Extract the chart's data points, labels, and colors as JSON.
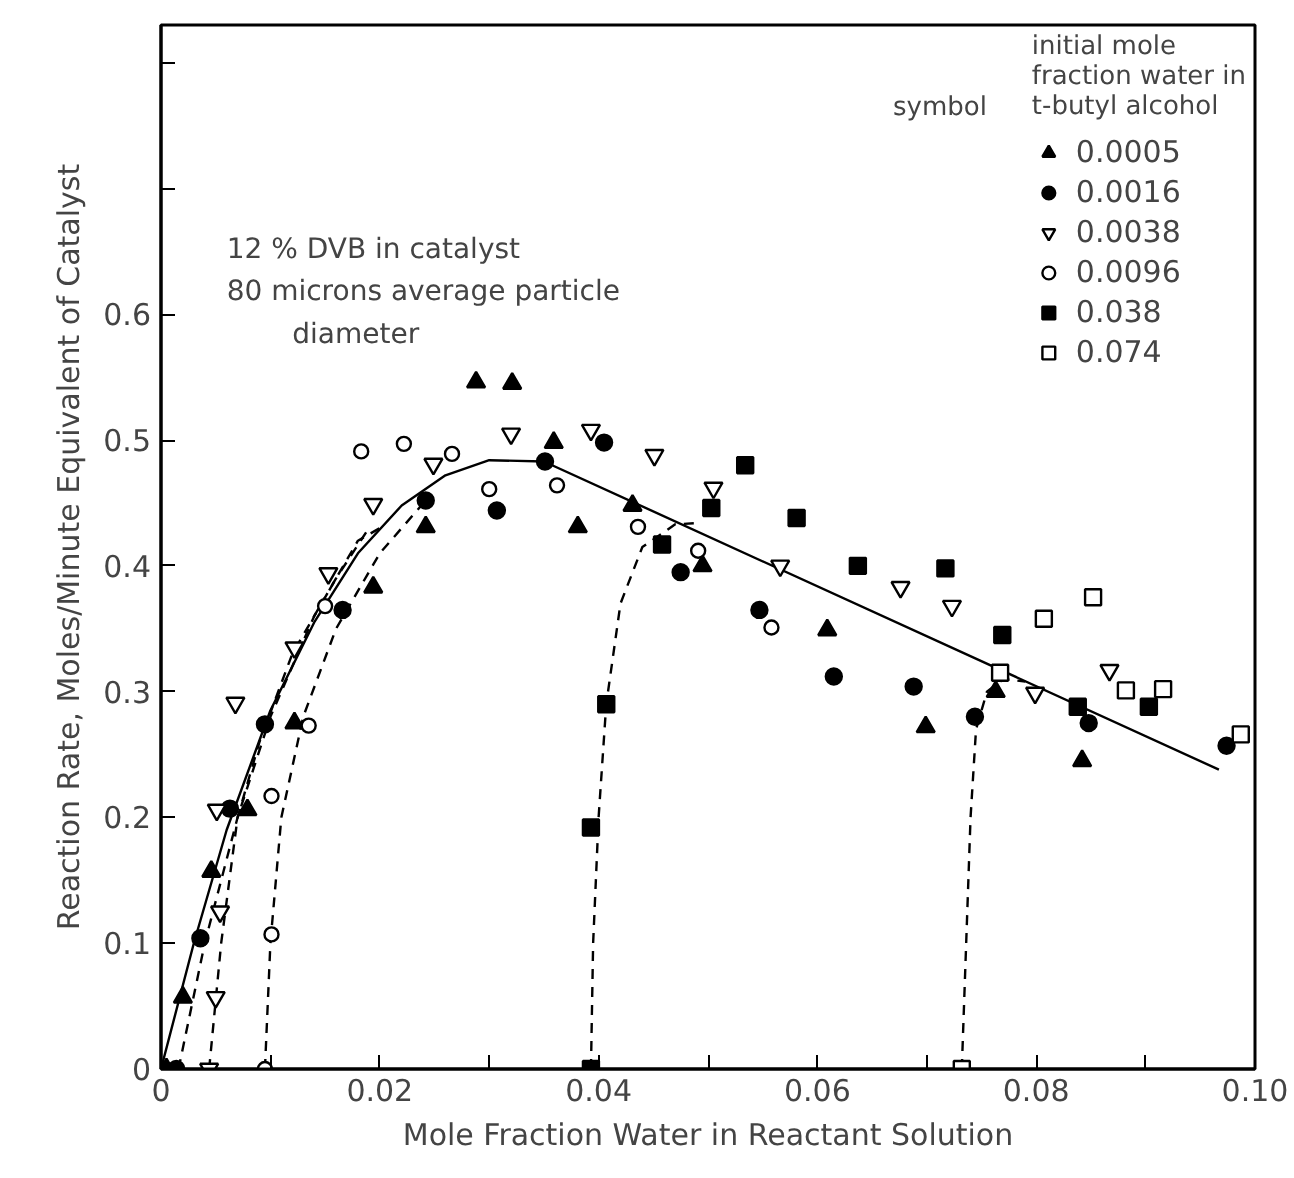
{
  "chart_data": {
    "type": "scatter",
    "xlabel": "Mole Fraction Water in Reactant Solution",
    "ylabel": "Reaction Rate, Moles/Minute Equivalent of Catalyst",
    "legend_title": "initial mole\nfraction water in\nt-butyl alcohol",
    "legend": "top right",
    "grid": false,
    "annotations": [
      "symbol",
      "12 % DVB in catalyst",
      "80 microns average particle",
      "diameter"
    ],
    "xlim": [
      0,
      0.1
    ],
    "ylim": [
      0,
      0.83
    ],
    "xticks": [
      0,
      {
        "value": 0.01,
        "label": null
      },
      "0.02",
      {
        "value": 0.03,
        "label": null
      },
      0.04,
      {
        "value": 0.05,
        "label": null
      },
      0.06,
      {
        "value": 0.07,
        "label": null
      },
      0.08,
      {
        "value": 0.09,
        "label": null
      },
      {
        "value": 0.1,
        "label": "0.10"
      }
    ],
    "yticks": [
      0,
      0.1,
      0.2,
      0.3,
      0.4,
      0.5,
      0.6,
      {
        "value": 0.7,
        "label": null
      },
      {
        "value": 0.8,
        "label": null
      }
    ],
    "series": [
      {
        "type": "line",
        "color": "#000000",
        "line_style": "solid",
        "marker": "none",
        "x": [
          0,
          0.003,
          0.006,
          0.01,
          0.014,
          0.018,
          0.022,
          0.026,
          0.03,
          0.035,
          0.0967
        ],
        "values": [
          0,
          0.1,
          0.19,
          0.285,
          0.355,
          0.41,
          0.448,
          0.472,
          0.484,
          0.483,
          0.238
        ]
      },
      {
        "type": "line",
        "color": "#000000",
        "line_style": "dashed",
        "marker": "none",
        "x": [
          0.0016,
          0.004,
          0.007,
          0.01,
          0.014,
          0.018,
          0.02
        ],
        "values": [
          0,
          0.1,
          0.2,
          0.28,
          0.36,
          0.42,
          0.43
        ]
      },
      {
        "type": "line",
        "color": "#000000",
        "line_style": "dashed",
        "marker": "none",
        "x": [
          0.0044,
          0.0055,
          0.007,
          0.009,
          0.012,
          0.016,
          0.019
        ],
        "values": [
          0,
          0.1,
          0.2,
          0.26,
          0.33,
          0.39,
          0.43
        ]
      },
      {
        "type": "line",
        "color": "#000000",
        "line_style": "dashed",
        "marker": "none",
        "x": [
          0.0095,
          0.01,
          0.011,
          0.013,
          0.016,
          0.02,
          0.024
        ],
        "values": [
          0,
          0.1,
          0.2,
          0.28,
          0.35,
          0.41,
          0.45
        ]
      },
      {
        "type": "line",
        "color": "#000000",
        "line_style": "dashed",
        "marker": "none",
        "x": [
          0.0393,
          0.0395,
          0.04,
          0.0407,
          0.042,
          0.044,
          0.047,
          0.049
        ],
        "values": [
          0,
          0.1,
          0.2,
          0.29,
          0.37,
          0.415,
          0.433,
          0.434
        ]
      },
      {
        "type": "line",
        "color": "#000000",
        "line_style": "dashed",
        "marker": "none",
        "x": [
          0.0732,
          0.0736,
          0.074,
          0.0745,
          0.0755,
          0.077,
          0.079
        ],
        "values": [
          0,
          0.1,
          0.2,
          0.27,
          0.3,
          0.31,
          0.308
        ]
      },
      {
        "name": "0.0005",
        "color": "#000000",
        "marker": "triangle",
        "x": [
          0.0005,
          0.002,
          0.0046,
          0.0079,
          0.0122,
          0.0194,
          0.0242,
          0.0288,
          0.0321,
          0.0359,
          0.0381,
          0.0431,
          0.0495,
          0.0609,
          0.0699,
          0.0763,
          0.0842
        ],
        "values": [
          0,
          0.057,
          0.157,
          0.206,
          0.275,
          0.383,
          0.431,
          0.546,
          0.545,
          0.498,
          0.431,
          0.448,
          0.4,
          0.349,
          0.272,
          0.3,
          0.245
        ]
      },
      {
        "name": "0.0016",
        "color": "#000000",
        "marker": "circle",
        "x": [
          0.0014,
          0.0036,
          0.0063,
          0.0095,
          0.0166,
          0.0242,
          0.0307,
          0.0351,
          0.0405,
          0.0475,
          0.0547,
          0.0615,
          0.0688,
          0.0744,
          0.0848,
          0.0974
        ],
        "values": [
          0,
          0.104,
          0.207,
          0.274,
          0.365,
          0.452,
          0.444,
          0.483,
          0.498,
          0.395,
          0.365,
          0.312,
          0.304,
          0.28,
          0.275,
          0.257
        ]
      },
      {
        "name": "0.0038",
        "color": "#000000",
        "marker": "triangle",
        "x": [
          0.0044,
          0.005,
          0.0054,
          0.0051,
          0.0068,
          0.0122,
          0.0153,
          0.0194,
          0.0249,
          0.032,
          0.0393,
          0.0451,
          0.0505,
          0.0566,
          0.0676,
          0.0723,
          0.0799,
          0.0867
        ],
        "values": [
          0,
          0.057,
          0.125,
          0.206,
          0.291,
          0.335,
          0.394,
          0.449,
          0.481,
          0.505,
          0.508,
          0.488,
          0.462,
          0.4,
          0.383,
          0.368,
          0.299,
          0.317
        ]
      },
      {
        "name": "0.0096",
        "color": "#000000",
        "marker": "circle",
        "x": [
          0.0095,
          0.0101,
          0.0101,
          0.0135,
          0.015,
          0.0183,
          0.0222,
          0.0266,
          0.03,
          0.0362,
          0.0436,
          0.0491,
          0.0558
        ],
        "values": [
          0,
          0.107,
          0.217,
          0.273,
          0.368,
          0.491,
          0.497,
          0.489,
          0.461,
          0.464,
          0.431,
          0.412,
          0.351
        ]
      },
      {
        "name": "0.038",
        "color": "#000000",
        "marker": "square",
        "x": [
          0.0393,
          0.0393,
          0.0407,
          0.0458,
          0.0503,
          0.0534,
          0.0581,
          0.0637,
          0.0717,
          0.0769,
          0.0838,
          0.0903
        ],
        "values": [
          0,
          0.192,
          0.29,
          0.417,
          0.446,
          0.48,
          0.438,
          0.4,
          0.398,
          0.345,
          0.288,
          0.288
        ]
      },
      {
        "name": "0.074",
        "color": "#000000",
        "marker": "square",
        "x": [
          0.0732,
          0.0767,
          0.0807,
          0.0852,
          0.0882,
          0.0916,
          0.0987
        ],
        "values": [
          0,
          0.315,
          0.358,
          0.375,
          0.301,
          0.302,
          0.266
        ]
      }
    ]
  }
}
